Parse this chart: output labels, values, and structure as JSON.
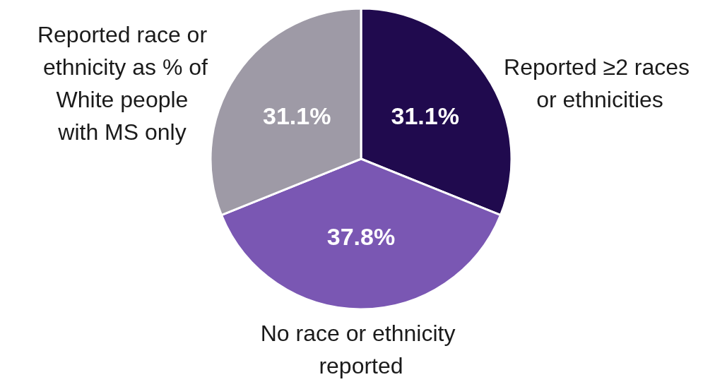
{
  "chart_data": {
    "type": "pie",
    "categories": [
      "Reported ≥2 races or ethnicities",
      "No race or ethnicity reported",
      "Reported race or ethnicity as % of White people with MS only"
    ],
    "values": [
      31.1,
      37.8,
      31.1
    ],
    "colors": [
      "#200a4e",
      "#7a57b3",
      "#9e9aa6"
    ],
    "value_labels": [
      "31.1%",
      "37.8%",
      "31.1%"
    ],
    "legend": false
  }
}
